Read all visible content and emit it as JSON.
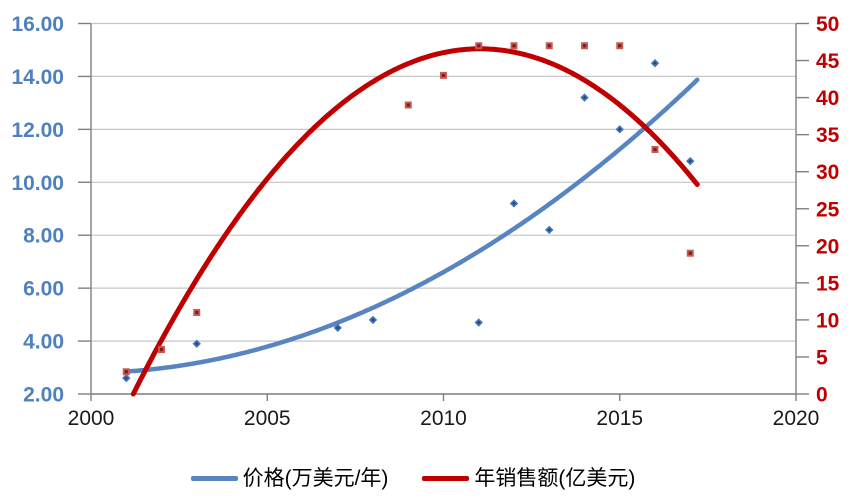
{
  "chart_data": {
    "type": "scatter",
    "title": "",
    "x_axis": {
      "min": 2000,
      "max": 2020,
      "tick_values": [
        2000,
        2005,
        2010,
        2015,
        2020
      ],
      "tick_labels": [
        "2000",
        "2005",
        "2010",
        "2015",
        "2020"
      ]
    },
    "left_y_axis": {
      "min": 2,
      "max": 16,
      "tick_values": [
        16,
        14,
        12,
        10,
        8,
        6,
        4,
        2
      ],
      "tick_labels": [
        "16.00",
        "14.00",
        "12.00",
        "10.00",
        "8.00",
        "6.00",
        "4.00",
        "2.00"
      ],
      "color": "#4E81BD"
    },
    "right_y_axis": {
      "min": 0,
      "max": 50,
      "tick_values": [
        50,
        45,
        40,
        35,
        30,
        25,
        20,
        15,
        10,
        5,
        0
      ],
      "tick_labels": [
        "50",
        "45",
        "40",
        "35",
        "30",
        "25",
        "20",
        "15",
        "10",
        "5",
        "0"
      ],
      "color": "#C00000"
    },
    "series": [
      {
        "name": "价格(万美元/年)",
        "axis": "left",
        "marker": "diamond",
        "marker_color": "#4475B5",
        "marker_inner": "#1F4978",
        "trend_color": "#5885C2",
        "trend_width": 4.5,
        "x": [
          2001,
          2003,
          2007,
          2008,
          2011,
          2012,
          2013,
          2014,
          2015,
          2016,
          2017
        ],
        "y": [
          2.6,
          3.9,
          4.5,
          4.8,
          4.7,
          9.2,
          8.2,
          13.2,
          12.0,
          14.5,
          10.8
        ],
        "trend": {
          "type": "quadratic",
          "origin": 2001,
          "coeffs": [
            2.85,
            0.089,
            0.0365
          ],
          "domain": [
            2001,
            2017.2
          ]
        }
      },
      {
        "name": "年销售额(亿美元)",
        "axis": "right",
        "marker": "square",
        "marker_color": "#C75B55",
        "marker_inner": "#7C1D18",
        "trend_color": "#C00000",
        "trend_width": 5,
        "x": [
          2001,
          2002,
          2003,
          2009,
          2010,
          2011,
          2012,
          2013,
          2014,
          2015,
          2016,
          2017
        ],
        "y": [
          3,
          6,
          11,
          39,
          43,
          47,
          47,
          47,
          47,
          47,
          33,
          19
        ],
        "trend": {
          "type": "quadratic",
          "origin": 2000,
          "coeffs": [
            -12.06,
            10.63,
            -0.4817
          ],
          "domain": [
            2000.5,
            2017.2
          ],
          "clip_min": 0
        }
      }
    ],
    "legend": {
      "position": "bottom",
      "entries": [
        "价格(万美元/年)",
        "年销售额(亿美元)"
      ]
    },
    "grid": true,
    "colors": {
      "gridline": "#C6C6C6",
      "axis_line": "#808080",
      "x_label": "#1A1A1A",
      "background": "#FFFFFF"
    }
  }
}
